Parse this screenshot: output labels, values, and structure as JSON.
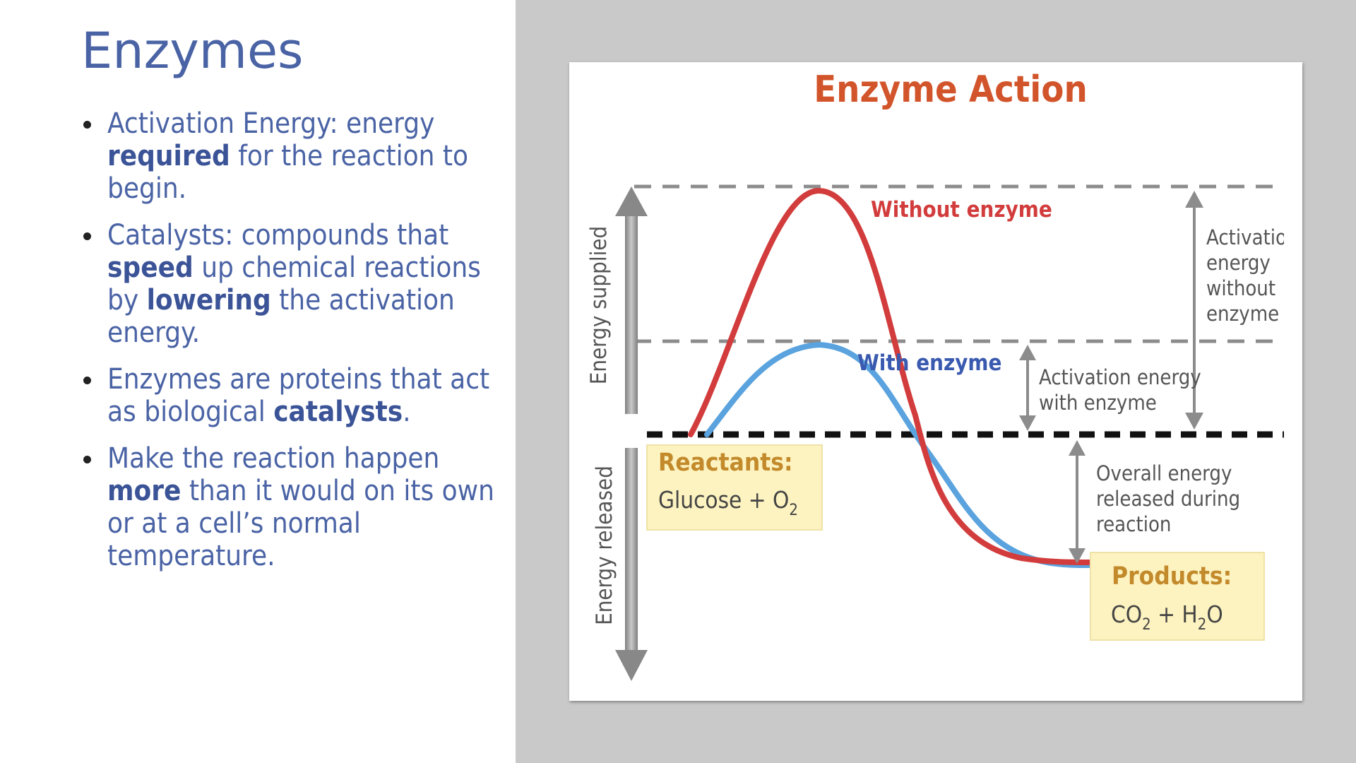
{
  "slide": {
    "title": "Enzymes",
    "bullets": [
      {
        "segments": [
          {
            "text": "Activation Energy: energy ",
            "bold": false
          },
          {
            "text": "required",
            "bold": true
          },
          {
            "text": " for the reaction to begin.",
            "bold": false
          }
        ]
      },
      {
        "segments": [
          {
            "text": "Catalysts: compounds that ",
            "bold": false
          },
          {
            "text": "speed",
            "bold": true
          },
          {
            "text": " up chemical reactions by ",
            "bold": false
          },
          {
            "text": "lowering",
            "bold": true
          },
          {
            "text": " the activation energy.",
            "bold": false
          }
        ]
      },
      {
        "segments": [
          {
            "text": "Enzymes are proteins that act as biological ",
            "bold": false
          },
          {
            "text": "catalysts",
            "bold": true
          },
          {
            "text": ".",
            "bold": false
          }
        ]
      },
      {
        "segments": [
          {
            "text": "Make the reaction happen ",
            "bold": false
          },
          {
            "text": "more",
            "bold": true
          },
          {
            "text": " than it would on its own or at a cell’s normal temperature.",
            "bold": false
          }
        ]
      }
    ]
  },
  "diagram": {
    "title": "Enzyme Action",
    "axis_up_label": "Energy supplied",
    "axis_down_label": "Energy released",
    "curve_without_label": "Without enzyme",
    "curve_with_label": "With enzyme",
    "activation_without_lines": [
      "Activatio",
      "energy",
      "without",
      "enzyme"
    ],
    "activation_with_lines": [
      "Activation energy",
      "with enzyme"
    ],
    "overall_lines": [
      "Overall energy",
      "released during",
      "reaction"
    ],
    "reactants": {
      "heading": "Reactants:",
      "formula": "Glucose + O",
      "formula_sub": "2"
    },
    "products": {
      "heading": "Products:",
      "formula_a": "CO",
      "formula_a_sub": "2",
      "formula_plus": " + H",
      "formula_b_sub": "2",
      "formula_b": "O"
    },
    "colors": {
      "title": "#d2542a",
      "without_curve": "#d23c3c",
      "with_curve": "#5aa3de",
      "with_label": "#3a5ab0",
      "box_fill": "#fdf3c0",
      "box_heading": "#c38a2c",
      "annotation": "#555555"
    }
  }
}
